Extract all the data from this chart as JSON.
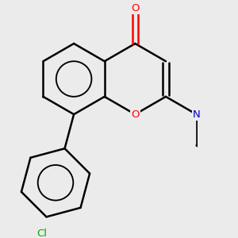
{
  "background_color": "#ebebeb",
  "bond_color": "#000000",
  "oxygen_color": "#ff0000",
  "nitrogen_color": "#0000cc",
  "chlorine_color": "#00aa00",
  "line_width": 1.8,
  "fig_size": [
    3.0,
    3.0
  ],
  "dpi": 100,
  "xlim": [
    -2.0,
    3.5
  ],
  "ylim": [
    -4.0,
    2.2
  ]
}
